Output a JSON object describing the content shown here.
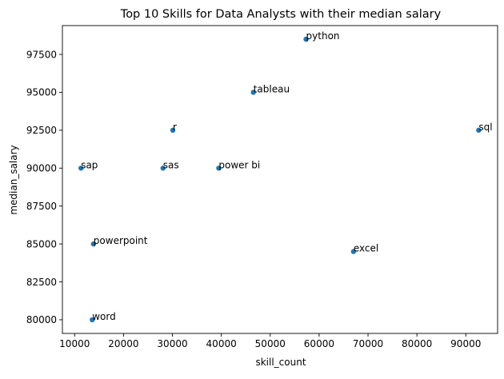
{
  "chart_data": {
    "type": "scatter",
    "title": "Top 10 Skills for Data Analysts with their median salary",
    "xlabel": "skill_count",
    "ylabel": "median_salary",
    "xlim": [
      7500,
      96500
    ],
    "ylim": [
      79100,
      99400
    ],
    "xticks": [
      10000,
      20000,
      30000,
      40000,
      50000,
      60000,
      70000,
      80000,
      90000
    ],
    "yticks": [
      80000,
      82500,
      85000,
      87500,
      90000,
      92500,
      95000,
      97500
    ],
    "grid": false,
    "marker_color": "#1f77b4",
    "points": [
      {
        "label": "python",
        "x": 57326,
        "y": 98500
      },
      {
        "label": "tableau",
        "x": 46554,
        "y": 95000
      },
      {
        "label": "r",
        "x": 30075,
        "y": 92500
      },
      {
        "label": "sql",
        "x": 92628,
        "y": 92500
      },
      {
        "label": "sap",
        "x": 11297,
        "y": 90000
      },
      {
        "label": "sas",
        "x": 28068,
        "y": 90000
      },
      {
        "label": "power bi",
        "x": 39468,
        "y": 90000
      },
      {
        "label": "powerpoint",
        "x": 13848,
        "y": 85000
      },
      {
        "label": "excel",
        "x": 67031,
        "y": 84500
      },
      {
        "label": "word",
        "x": 13591,
        "y": 80000
      }
    ]
  }
}
